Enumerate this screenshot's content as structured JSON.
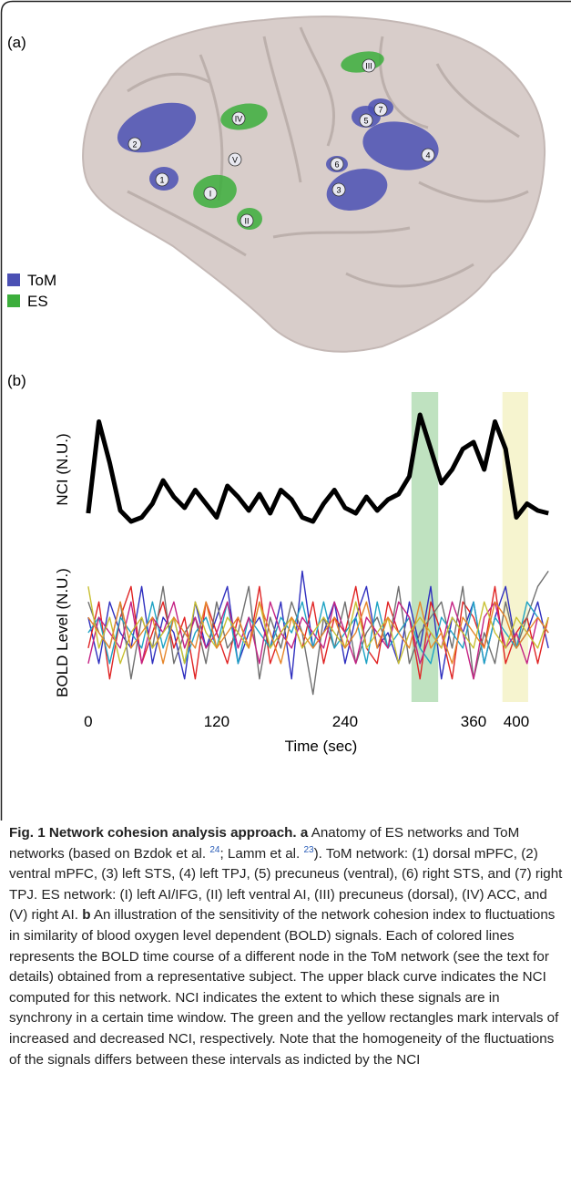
{
  "panel_labels": [
    "(a)",
    "(b)"
  ],
  "brain": {
    "legend": [
      {
        "name": "ToM",
        "color": "#4b50b4"
      },
      {
        "name": "ES",
        "color": "#3cae3c"
      }
    ],
    "tom_nodes": [
      "1",
      "2",
      "3",
      "4",
      "5",
      "6",
      "7"
    ],
    "es_nodes": [
      "I",
      "II",
      "III",
      "IV",
      "V"
    ]
  },
  "chart_data": [
    {
      "type": "line",
      "ylabel": "NCI (N.U.)",
      "x": [
        0,
        10,
        20,
        30,
        40,
        50,
        60,
        70,
        80,
        90,
        100,
        110,
        120,
        130,
        140,
        150,
        160,
        170,
        180,
        190,
        200,
        210,
        220,
        230,
        240,
        250,
        260,
        270,
        280,
        290,
        300,
        310,
        320,
        330,
        340,
        350,
        360,
        370,
        380,
        390,
        400,
        410,
        420,
        430
      ],
      "xlim": [
        -5,
        440
      ],
      "ylim": [
        0,
        10
      ],
      "series": [
        {
          "color": "#000000",
          "values": [
            1.8,
            8.5,
            5.5,
            2.0,
            1.2,
            1.5,
            2.5,
            4.2,
            3.0,
            2.2,
            3.5,
            2.5,
            1.5,
            3.8,
            3.0,
            2.0,
            3.2,
            1.8,
            3.5,
            2.8,
            1.5,
            1.2,
            2.5,
            3.5,
            2.2,
            1.8,
            3.0,
            2.0,
            2.8,
            3.2,
            4.5,
            9.0,
            6.5,
            4.0,
            5.0,
            6.5,
            7.0,
            5.0,
            8.5,
            6.5,
            1.5,
            2.5,
            2.0,
            1.8
          ]
        }
      ],
      "highlights": [
        {
          "range": [
            302,
            327
          ],
          "color": "#bfe2c0"
        },
        {
          "range": [
            387,
            411
          ],
          "color": "#f6f4cf"
        }
      ]
    },
    {
      "type": "line",
      "ylabel": "BOLD Level (N.U.)",
      "xlabel": "Time (sec)",
      "x": [
        0,
        10,
        20,
        30,
        40,
        50,
        60,
        70,
        80,
        90,
        100,
        110,
        120,
        130,
        140,
        150,
        160,
        170,
        180,
        190,
        200,
        210,
        220,
        230,
        240,
        250,
        260,
        270,
        280,
        290,
        300,
        310,
        320,
        330,
        340,
        350,
        360,
        370,
        380,
        390,
        400,
        410,
        420,
        430
      ],
      "xlim": [
        -5,
        440
      ],
      "ylim": [
        -4.5,
        4.5
      ],
      "xticks": [
        0,
        120,
        240,
        360,
        400
      ],
      "series": [
        {
          "color": "#2f2fbf",
          "values": [
            1,
            -2,
            2,
            0,
            -1,
            3,
            -2,
            1,
            0,
            -3,
            2,
            -1,
            1,
            3,
            -2,
            0,
            1,
            -1,
            2,
            -3,
            4,
            -1,
            0,
            2,
            -2,
            1,
            3,
            -1,
            0,
            -2,
            2,
            -1,
            3,
            -3,
            1,
            0,
            2,
            -2,
            1,
            3,
            -1,
            0,
            2,
            -1
          ]
        },
        {
          "color": "#e02424",
          "values": [
            -1,
            2,
            -3,
            1,
            3,
            -2,
            0,
            2,
            -1,
            1,
            -3,
            2,
            0,
            -2,
            1,
            -1,
            3,
            -2,
            0,
            1,
            -1,
            2,
            -2,
            1,
            0,
            3,
            -1,
            -2,
            2,
            0,
            1,
            -3,
            2,
            0,
            -3,
            2,
            1,
            -1,
            3,
            -2,
            0,
            1,
            -2,
            1
          ]
        },
        {
          "color": "#707070",
          "values": [
            2,
            0,
            -1,
            2,
            -3,
            1,
            -1,
            3,
            -2,
            0,
            1,
            -2,
            2,
            -1,
            0,
            3,
            -3,
            1,
            -1,
            2,
            0,
            -4,
            1,
            -1,
            2,
            -2,
            0,
            1,
            -1,
            3,
            -2,
            0,
            1,
            2,
            -1,
            3,
            -3,
            0,
            -2,
            2,
            -1,
            1,
            3,
            4
          ]
        },
        {
          "color": "#1fa3c4",
          "values": [
            0,
            1,
            -2,
            1,
            0,
            -1,
            2,
            -1,
            1,
            -2,
            0,
            1,
            -1,
            2,
            -2,
            1,
            0,
            -1,
            1,
            0,
            2,
            -1,
            2,
            -1,
            0,
            1,
            -2,
            2,
            -1,
            0,
            1,
            -1,
            -2,
            1,
            0,
            -1,
            2,
            -2,
            1,
            0,
            -1,
            2,
            1,
            0
          ]
        },
        {
          "color": "#c42284",
          "values": [
            -2,
            1,
            0,
            -1,
            2,
            -2,
            1,
            0,
            2,
            -1,
            1,
            -1,
            0,
            2,
            -1,
            1,
            -2,
            2,
            0,
            -1,
            1,
            0,
            -1,
            2,
            0,
            -2,
            1,
            0,
            -1,
            2,
            1,
            -2,
            0,
            -1,
            2,
            0,
            -3,
            1,
            2,
            -1,
            0,
            -2,
            1,
            0
          ]
        },
        {
          "color": "#c8c032",
          "values": [
            3,
            -1,
            1,
            -2,
            0,
            1,
            -1,
            0,
            1,
            -2,
            2,
            0,
            -1,
            1,
            0,
            -1,
            2,
            -1,
            0,
            1,
            -1,
            0,
            1,
            0,
            -1,
            2,
            -1,
            0,
            1,
            -2,
            0,
            1,
            0,
            -1,
            1,
            0,
            -1,
            2,
            0,
            -1,
            1,
            0,
            -1,
            1
          ]
        },
        {
          "color": "#e6862a",
          "values": [
            1,
            0,
            -1,
            2,
            -1,
            0,
            1,
            -2,
            1,
            0,
            -1,
            2,
            -1,
            0,
            1,
            -1,
            2,
            0,
            -2,
            1,
            0,
            -1,
            0,
            1,
            -1,
            0,
            2,
            -1,
            1,
            0,
            -1,
            2,
            -1,
            0,
            -2,
            1,
            0,
            -1,
            2,
            1,
            -1,
            0,
            1,
            0
          ]
        }
      ]
    }
  ],
  "caption": {
    "title": "Fig. 1 Network cohesion analysis approach.",
    "a": "a",
    "a_text_1": "Anatomy of ES networks and ToM networks (based on Bzdok et al.",
    "ref_1": "24",
    "a_text_2": "; Lamm et al.",
    "ref_2": "23",
    "a_text_3": "). ToM network: (1) dorsal mPFC, (2) ventral mPFC, (3) left STS, (4) left TPJ, (5) precuneus (ventral), (6) right STS, and (7) right TPJ. ES network: (I) left AI/IFG, (II) left ventral AI, (III) precuneus (dorsal), (IV) ACC, and (V) right AI.",
    "b": "b",
    "b_text": "An illustration of the sensitivity of the network cohesion index to fluctuations in similarity of blood oxygen level dependent (BOLD) signals. Each of colored lines represents the BOLD time course of a different node in the ToM network (see the text for details) obtained from a representative subject. The upper black curve indicates the NCI computed for this network. NCI indicates the extent to which these signals are in synchrony in a certain time window. The green and the yellow rectangles mark intervals of increased and decreased NCI, respectively. Note that the homogeneity of the fluctuations of the signals differs between these intervals as indicted by the NCI"
  }
}
